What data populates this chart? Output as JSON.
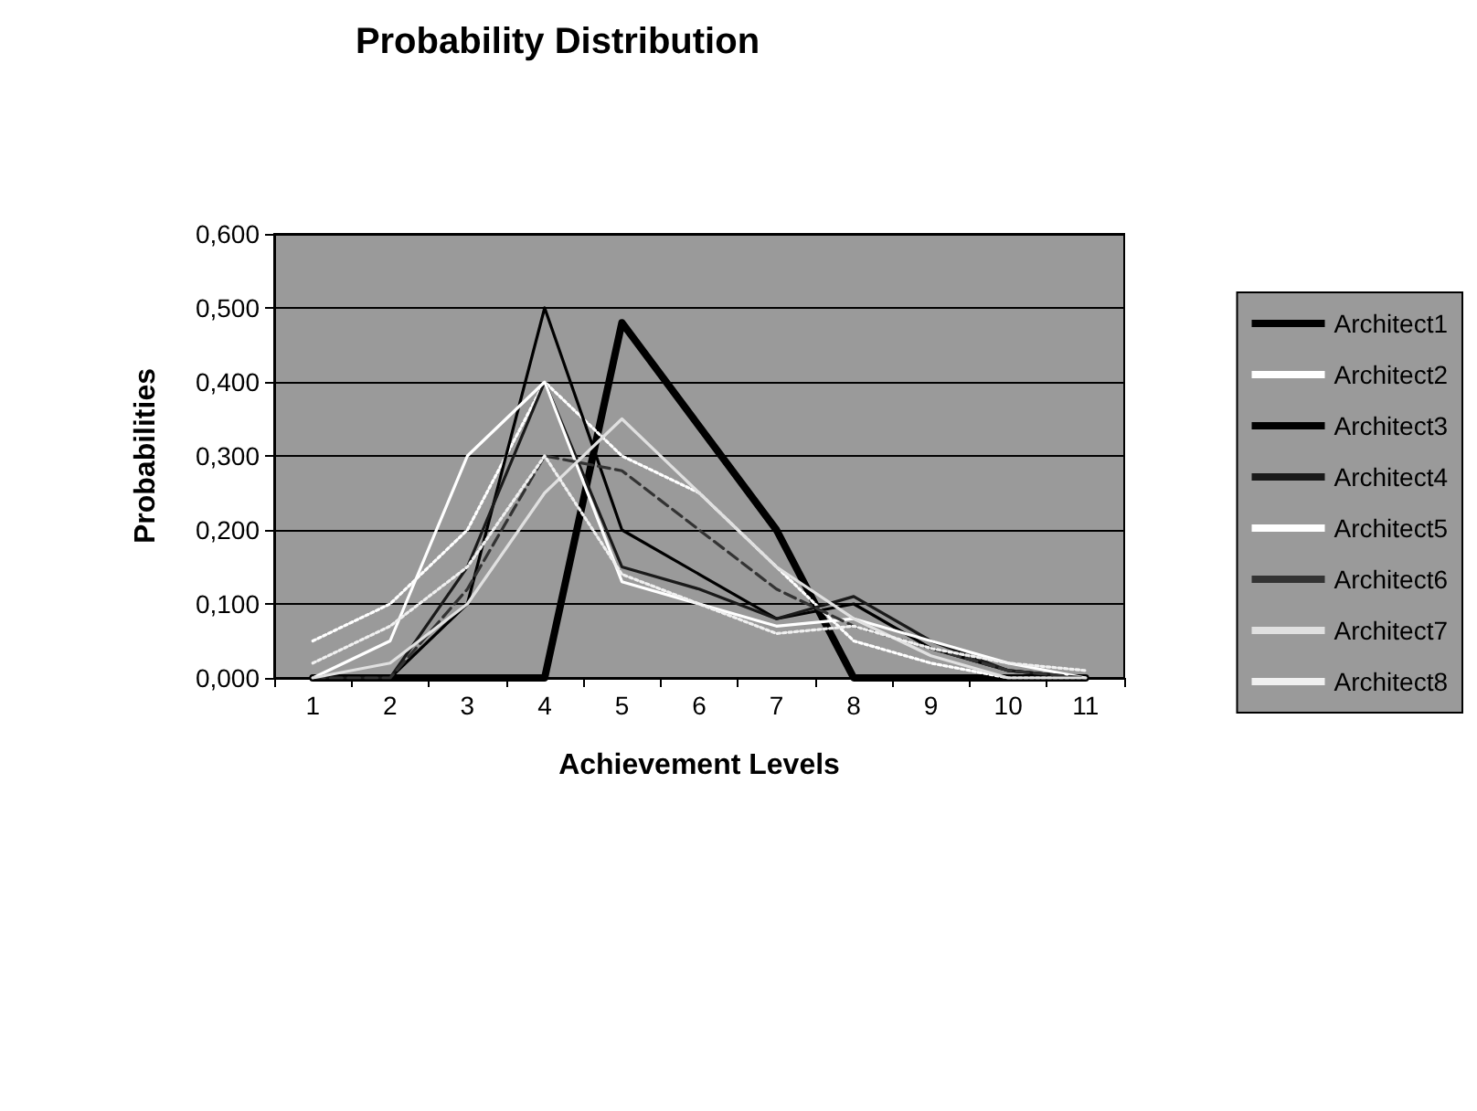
{
  "chart_data": {
    "type": "line",
    "title": "Probability Distribution",
    "xlabel": "Achievement Levels",
    "ylabel": "Probabilities",
    "categories": [
      "1",
      "2",
      "3",
      "4",
      "5",
      "6",
      "7",
      "8",
      "9",
      "10",
      "11"
    ],
    "series": [
      {
        "name": "Architect1",
        "color": "#000000",
        "line_style": "solid",
        "values": [
          0,
          0,
          0,
          0,
          0.48,
          0.34,
          0.2,
          0,
          0,
          0,
          0
        ]
      },
      {
        "name": "Architect2",
        "color": "#ffffff",
        "line_style": "dotted",
        "values": [
          0.05,
          0.1,
          0.2,
          0.4,
          0.3,
          0.25,
          0.15,
          0.05,
          0.02,
          0,
          0
        ]
      },
      {
        "name": "Architect3",
        "color": "#000000",
        "line_style": "solid",
        "values": [
          0,
          0,
          0.1,
          0.5,
          0.2,
          0.14,
          0.08,
          0.1,
          0.04,
          0.01,
          0
        ]
      },
      {
        "name": "Architect4",
        "color": "#1a1a1a",
        "line_style": "solid",
        "values": [
          0,
          0,
          0.15,
          0.4,
          0.15,
          0.12,
          0.08,
          0.11,
          0.05,
          0.01,
          0
        ]
      },
      {
        "name": "Architect5",
        "color": "#ffffff",
        "line_style": "solid",
        "values": [
          0,
          0.05,
          0.3,
          0.4,
          0.13,
          0.1,
          0.07,
          0.08,
          0.05,
          0.02,
          0
        ]
      },
      {
        "name": "Architect6",
        "color": "#333333",
        "line_style": "dashed",
        "values": [
          0,
          0,
          0.12,
          0.3,
          0.28,
          0.2,
          0.12,
          0.07,
          0.04,
          0.01,
          0
        ]
      },
      {
        "name": "Architect7",
        "color": "#e0e0e0",
        "line_style": "solid",
        "values": [
          0,
          0.02,
          0.1,
          0.25,
          0.35,
          0.25,
          0.15,
          0.08,
          0.03,
          0,
          0
        ]
      },
      {
        "name": "Architect8",
        "color": "#f0f0f0",
        "line_style": "dotted",
        "values": [
          0.02,
          0.07,
          0.15,
          0.3,
          0.14,
          0.1,
          0.06,
          0.07,
          0.04,
          0.02,
          0.01
        ]
      }
    ],
    "ylim": [
      0,
      0.6
    ],
    "yticks": [
      {
        "value": 0,
        "label": "0,000"
      },
      {
        "value": 0.1,
        "label": "0,100"
      },
      {
        "value": 0.2,
        "label": "0,200"
      },
      {
        "value": 0.3,
        "label": "0,300"
      },
      {
        "value": 0.4,
        "label": "0,400"
      },
      {
        "value": 0.5,
        "label": "0,500"
      },
      {
        "value": 0.6,
        "label": "0,600"
      }
    ],
    "grid": "y",
    "legend": "right",
    "marker": "none"
  }
}
